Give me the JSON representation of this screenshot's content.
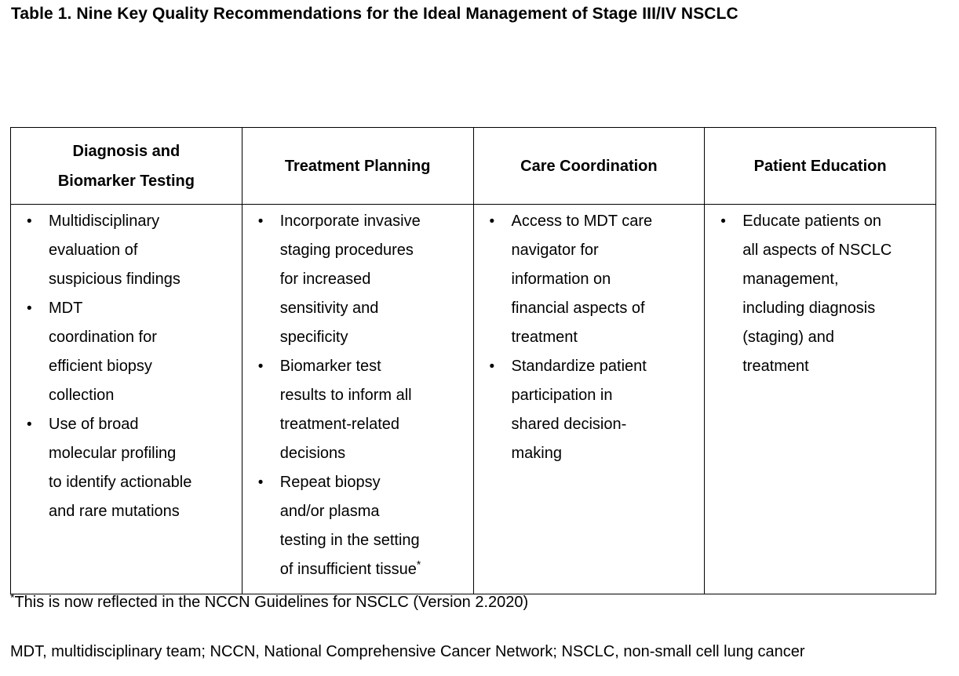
{
  "title": "Table 1. Nine Key Quality Recommendations for the Ideal Management of Stage III/IV NSCLC",
  "table": {
    "bullet_glyph": "•",
    "columns": [
      {
        "header": "Diagnosis and\nBiomarker Testing",
        "bullets": [
          {
            "text": "Multidisciplinary\nevaluation of\nsuspicious findings"
          },
          {
            "text": "MDT\ncoordination for\nefficient biopsy\ncollection"
          },
          {
            "text": "Use of broad\nmolecular profiling\nto identify actionable\nand rare mutations"
          }
        ]
      },
      {
        "header": "Treatment Planning",
        "bullets": [
          {
            "text": "Incorporate invasive\nstaging procedures\nfor increased\nsensitivity and\nspecificity"
          },
          {
            "text": "Biomarker test\nresults to inform all\ntreatment-related\ndecisions"
          },
          {
            "text": "Repeat biopsy\nand/or plasma\ntesting in the setting\nof insufficient tissue",
            "sup": "*"
          }
        ]
      },
      {
        "header": "Care Coordination",
        "bullets": [
          {
            "text": "Access to MDT care\nnavigator for\ninformation on\nfinancial aspects of\ntreatment"
          },
          {
            "text": "Standardize patient\nparticipation in\nshared decision-\nmaking"
          }
        ]
      },
      {
        "header": "Patient Education",
        "bullets": [
          {
            "text": "Educate patients on\nall aspects of NSCLC\nmanagement,\nincluding diagnosis\n(staging) and\ntreatment"
          }
        ]
      }
    ]
  },
  "footnotes": {
    "note1_sup": "*",
    "note1_text": "This is now reflected in the NCCN Guidelines for NSCLC (Version 2.2020)",
    "abbreviations": "MDT, multidisciplinary team; NCCN, National Comprehensive Cancer Network; NSCLC, non-small cell lung cancer"
  },
  "colors": {
    "text": "#000000",
    "background": "#ffffff",
    "border": "#000000"
  }
}
